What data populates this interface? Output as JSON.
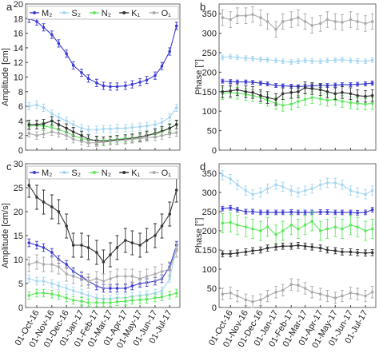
{
  "chart_data": [
    {
      "type": "errorline",
      "panel_label": "a",
      "ylabel": "Amplitude [cm]",
      "x": [
        "15-Sep-16",
        "01-Oct-16",
        "15-Oct-16",
        "01-Nov-16",
        "15-Nov-16",
        "01-Dec-16",
        "15-Dec-16",
        "01-Jan-17",
        "15-Jan-17",
        "01-Feb-17",
        "15-Feb-17",
        "01-Mar-17",
        "15-Mar-17",
        "01-Apr-17",
        "15-Apr-17",
        "01-May-17",
        "15-May-17",
        "01-Jun-17",
        "15-Jun-17",
        "01-Jul-17",
        "15-Jul-17"
      ],
      "xlim": [
        "08-Sep-16",
        "22-Jul-17"
      ],
      "xticks": [
        "01-Oct-16",
        "01-Nov-16",
        "01-Dec-16",
        "01-Jan-17",
        "01-Feb-17",
        "01-Mar-17",
        "01-Apr-17",
        "01-May-17",
        "01-Jun-17",
        "01-Jul-17"
      ],
      "show_xtick_labels": false,
      "legend": true,
      "ylim": [
        0,
        20
      ],
      "yticks": [
        0,
        2,
        4,
        6,
        8,
        10,
        12,
        14,
        16,
        18,
        20
      ],
      "series": [
        {
          "name": "M₂",
          "color": "#3b3bd4",
          "error": 0.5,
          "values": [
            18.0,
            17.6,
            16.8,
            15.8,
            14.6,
            13.2,
            11.6,
            10.6,
            9.8,
            9.2,
            8.8,
            8.7,
            8.7,
            8.8,
            9.0,
            9.3,
            9.6,
            10.2,
            11.5,
            13.5,
            17.0
          ]
        },
        {
          "name": "S₂",
          "color": "#a6d6f2",
          "error": 0.5,
          "values": [
            6.0,
            6.2,
            5.8,
            5.0,
            4.5,
            4.0,
            3.5,
            3.0,
            2.8,
            2.8,
            2.9,
            2.9,
            3.0,
            3.0,
            3.1,
            3.2,
            3.3,
            3.5,
            3.8,
            4.5,
            5.8
          ]
        },
        {
          "name": "N₂",
          "color": "#5fe85f",
          "error": 0.5,
          "values": [
            3.3,
            3.4,
            3.3,
            3.1,
            2.8,
            2.5,
            2.0,
            1.6,
            1.4,
            1.3,
            1.3,
            1.4,
            1.5,
            1.6,
            1.7,
            1.8,
            2.0,
            2.2,
            2.5,
            3.0,
            3.5
          ]
        },
        {
          "name": "K₁",
          "color": "#333333",
          "error": 0.6,
          "values": [
            3.5,
            3.5,
            3.6,
            4.0,
            3.5,
            3.0,
            2.5,
            2.0,
            1.5,
            1.3,
            1.2,
            1.3,
            1.4,
            1.5,
            1.6,
            1.8,
            2.0,
            2.3,
            2.6,
            3.0,
            3.5
          ]
        },
        {
          "name": "O₁",
          "color": "#aaaaaa",
          "error": 0.5,
          "values": [
            2.3,
            2.0,
            2.2,
            2.5,
            2.3,
            2.0,
            1.5,
            1.2,
            1.0,
            1.0,
            1.1,
            1.2,
            1.3,
            1.4,
            1.5,
            1.6,
            1.7,
            1.8,
            2.0,
            2.2,
            2.4
          ]
        }
      ]
    },
    {
      "type": "errorline",
      "panel_label": "b",
      "ylabel": "Phase [°]",
      "x": [
        "15-Sep-16",
        "01-Oct-16",
        "15-Oct-16",
        "01-Nov-16",
        "15-Nov-16",
        "01-Dec-16",
        "15-Dec-16",
        "01-Jan-17",
        "15-Jan-17",
        "01-Feb-17",
        "15-Feb-17",
        "01-Mar-17",
        "15-Mar-17",
        "01-Apr-17",
        "15-Apr-17",
        "01-May-17",
        "15-May-17",
        "01-Jun-17",
        "15-Jun-17",
        "01-Jul-17",
        "15-Jul-17"
      ],
      "xlim": [
        "08-Sep-16",
        "22-Jul-17"
      ],
      "xticks": [
        "01-Oct-16",
        "01-Nov-16",
        "01-Dec-16",
        "01-Jan-17",
        "01-Feb-17",
        "01-Mar-17",
        "01-Apr-17",
        "01-May-17",
        "01-Jun-17",
        "01-Jul-17"
      ],
      "show_xtick_labels": false,
      "legend": false,
      "ylim": [
        0,
        375
      ],
      "yticks": [
        0,
        50,
        100,
        150,
        200,
        250,
        300,
        350
      ],
      "series": [
        {
          "color": "#3b3bd4",
          "error": 5,
          "values": [
            177,
            176,
            175,
            175,
            174,
            172,
            170,
            166,
            165,
            164,
            163,
            164,
            165,
            166,
            166,
            167,
            168,
            168,
            169,
            170,
            172
          ]
        },
        {
          "color": "#a6d6f2",
          "error": 6,
          "values": [
            238,
            240,
            238,
            236,
            235,
            233,
            232,
            230,
            228,
            226,
            228,
            230,
            229,
            228,
            230,
            231,
            232,
            230,
            229,
            228,
            231
          ]
        },
        {
          "color": "#5fe85f",
          "error": 15,
          "values": [
            145,
            148,
            146,
            143,
            140,
            135,
            128,
            120,
            115,
            118,
            125,
            130,
            135,
            132,
            128,
            130,
            125,
            122,
            120,
            118,
            120
          ]
        },
        {
          "color": "#333333",
          "error": 15,
          "values": [
            150,
            152,
            155,
            150,
            148,
            140,
            135,
            130,
            145,
            148,
            150,
            160,
            158,
            155,
            150,
            145,
            148,
            145,
            140,
            138,
            140
          ]
        },
        {
          "color": "#aaaaaa",
          "error": 20,
          "values": [
            340,
            335,
            345,
            345,
            348,
            340,
            330,
            310,
            330,
            335,
            340,
            330,
            320,
            325,
            335,
            330,
            328,
            335,
            330,
            325,
            330
          ]
        }
      ]
    },
    {
      "type": "errorline",
      "panel_label": "c",
      "ylabel": "Amplitude [cm/s]",
      "x": [
        "15-Sep-16",
        "01-Oct-16",
        "15-Oct-16",
        "01-Nov-16",
        "15-Nov-16",
        "01-Dec-16",
        "15-Dec-16",
        "01-Jan-17",
        "15-Jan-17",
        "01-Feb-17",
        "15-Feb-17",
        "01-Mar-17",
        "15-Mar-17",
        "01-Apr-17",
        "15-Apr-17",
        "01-May-17",
        "15-May-17",
        "01-Jun-17",
        "15-Jun-17",
        "01-Jul-17",
        "15-Jul-17"
      ],
      "xlim": [
        "08-Sep-16",
        "22-Jul-17"
      ],
      "xticks": [
        "01-Oct-16",
        "01-Nov-16",
        "01-Dec-16",
        "01-Jan-17",
        "01-Feb-17",
        "01-Mar-17",
        "01-Apr-17",
        "01-May-17",
        "01-Jun-17",
        "01-Jul-17"
      ],
      "show_xtick_labels": true,
      "legend": true,
      "ylim": [
        0,
        30
      ],
      "yticks": [
        0,
        5,
        10,
        15,
        20,
        25,
        30
      ],
      "series": [
        {
          "name": "M₂",
          "color": "#3b3bd4",
          "error": 0.8,
          "values": [
            13.5,
            13.0,
            12.5,
            11.5,
            10.0,
            9.0,
            7.5,
            6.5,
            5.5,
            4.5,
            4.0,
            4.0,
            4.0,
            4.0,
            4.5,
            5.0,
            5.2,
            5.5,
            6.0,
            8.5,
            13.0
          ]
        },
        {
          "name": "S₂",
          "color": "#a6d6f2",
          "error": 0.8,
          "values": [
            6.0,
            5.5,
            5.5,
            5.0,
            4.5,
            4.0,
            3.5,
            3.0,
            2.5,
            2.0,
            1.8,
            1.8,
            2.0,
            2.0,
            2.3,
            2.5,
            2.7,
            3.0,
            3.5,
            6.0,
            12.5
          ]
        },
        {
          "name": "N₂",
          "color": "#5fe85f",
          "error": 0.8,
          "values": [
            2.5,
            3.0,
            3.0,
            2.8,
            2.5,
            2.0,
            1.5,
            1.3,
            1.0,
            1.0,
            1.0,
            1.0,
            1.2,
            1.3,
            1.5,
            1.6,
            1.7,
            2.0,
            2.2,
            2.6,
            3.0
          ]
        },
        {
          "name": "K₁",
          "color": "#333333",
          "error": 2.5,
          "values": [
            25.5,
            23.0,
            22.0,
            21.0,
            20.0,
            17.0,
            13.0,
            13.0,
            12.5,
            11.5,
            9.5,
            11.0,
            12.5,
            14.0,
            13.5,
            13.0,
            14.0,
            15.0,
            17.0,
            19.5,
            24.5
          ]
        },
        {
          "name": "O₁",
          "color": "#aaaaaa",
          "error": 1.5,
          "values": [
            9.0,
            9.5,
            9.0,
            9.0,
            8.5,
            7.0,
            6.5,
            6.0,
            5.5,
            6.0,
            5.5,
            6.0,
            6.5,
            6.5,
            6.5,
            6.0,
            6.5,
            7.0,
            7.5,
            8.0,
            12.0
          ]
        }
      ]
    },
    {
      "type": "errorline",
      "panel_label": "d",
      "ylabel": "Phase [°]",
      "x": [
        "15-Sep-16",
        "01-Oct-16",
        "15-Oct-16",
        "01-Nov-16",
        "15-Nov-16",
        "01-Dec-16",
        "15-Dec-16",
        "01-Jan-17",
        "15-Jan-17",
        "01-Feb-17",
        "15-Feb-17",
        "01-Mar-17",
        "15-Mar-17",
        "01-Apr-17",
        "15-Apr-17",
        "01-May-17",
        "15-May-17",
        "01-Jun-17",
        "15-Jun-17",
        "01-Jul-17",
        "15-Jul-17"
      ],
      "xlim": [
        "08-Sep-16",
        "22-Jul-17"
      ],
      "xticks": [
        "01-Oct-16",
        "01-Nov-16",
        "01-Dec-16",
        "01-Jan-17",
        "01-Feb-17",
        "01-Mar-17",
        "01-Apr-17",
        "01-May-17",
        "01-Jun-17",
        "01-Jul-17"
      ],
      "show_xtick_labels": true,
      "legend": false,
      "ylim": [
        0,
        375
      ],
      "yticks": [
        0,
        50,
        100,
        150,
        200,
        250,
        300,
        350
      ],
      "series": [
        {
          "color": "#3b3bd4",
          "error": 6,
          "values": [
            258,
            260,
            255,
            250,
            250,
            248,
            248,
            248,
            248,
            249,
            248,
            248,
            248,
            249,
            249,
            248,
            248,
            248,
            247,
            248,
            255
          ]
        },
        {
          "color": "#a6d6f2",
          "error": 12,
          "values": [
            345,
            335,
            320,
            305,
            295,
            300,
            310,
            320,
            315,
            305,
            300,
            305,
            310,
            320,
            325,
            325,
            320,
            305,
            300,
            295,
            305
          ]
        },
        {
          "color": "#5fe85f",
          "error": 25,
          "values": [
            220,
            222,
            215,
            210,
            205,
            200,
            210,
            190,
            200,
            215,
            205,
            215,
            225,
            200,
            205,
            210,
            205,
            215,
            210,
            200,
            205
          ]
        },
        {
          "color": "#333333",
          "error": 8,
          "values": [
            140,
            140,
            142,
            145,
            148,
            150,
            155,
            158,
            160,
            160,
            162,
            160,
            158,
            155,
            150,
            148,
            145,
            145,
            143,
            142,
            143
          ]
        },
        {
          "color": "#aaaaaa",
          "error": 15,
          "values": [
            35,
            38,
            30,
            20,
            15,
            20,
            30,
            40,
            45,
            60,
            58,
            50,
            40,
            35,
            30,
            25,
            30,
            38,
            35,
            30,
            40
          ]
        }
      ]
    }
  ]
}
